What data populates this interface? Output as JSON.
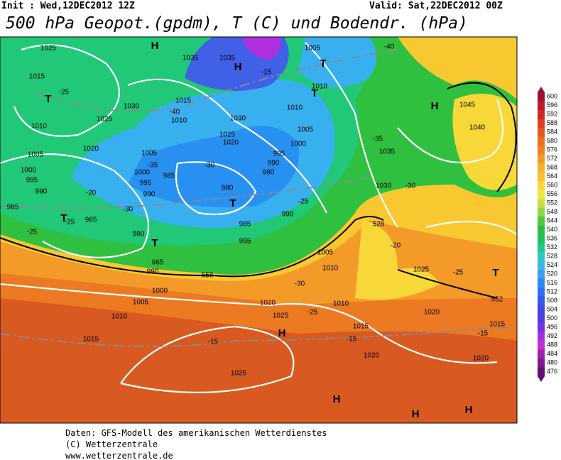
{
  "header": {
    "init": "Init : Wed,12DEC2012 12Z",
    "valid": "Valid: Sat,22DEC2012 00Z",
    "title": "500 hPa Geopot.(gpdm), T (C) und Bodendr. (hPa)"
  },
  "legend": {
    "levels": [
      600,
      596,
      592,
      588,
      584,
      580,
      576,
      572,
      568,
      564,
      560,
      556,
      552,
      548,
      544,
      540,
      536,
      532,
      528,
      524,
      520,
      516,
      512,
      508,
      504,
      500,
      496,
      492,
      488,
      484,
      480,
      476
    ]
  },
  "map_labels": [
    "1025",
    "H",
    "1035",
    "1035",
    "H",
    "-15",
    "1005",
    "T",
    "-40",
    "1015",
    "-25",
    "T",
    "1015",
    "-40",
    "1010",
    "1030",
    "1025",
    "1030",
    "1010",
    "T",
    "1010",
    "H",
    "1045",
    "1040",
    "1010",
    "1020",
    "1005",
    "1000",
    "-35",
    "1035",
    "1025",
    "1020",
    "1005",
    "1005",
    "995",
    "990",
    "-35",
    "-30",
    "1000",
    "995",
    "1000",
    "985",
    "980",
    "995",
    "990",
    "-20",
    "990",
    "980",
    "T",
    "-25",
    "985",
    "-30",
    "T",
    "-25",
    "985",
    "990",
    "985",
    "-25",
    "980",
    "T",
    "995",
    "985",
    "1005",
    "990",
    "-20",
    "1010",
    "1025",
    "-25",
    "T",
    "-30",
    "1000",
    "1005",
    "1020",
    "1010",
    "-25",
    "1020",
    "1025",
    "H",
    "1010",
    "1015",
    "-15",
    "1015",
    "-15",
    "-15",
    "1015",
    "1020",
    "1020",
    "1025",
    "H",
    "H",
    "H",
    "1030",
    "-30",
    "552",
    "558",
    "528"
  ],
  "footer": [
    "Daten: GFS-Modell des amerikanischen Wetterdienstes",
    "(C) Wetterzentrale",
    "www.wetterzentrale.de"
  ]
}
